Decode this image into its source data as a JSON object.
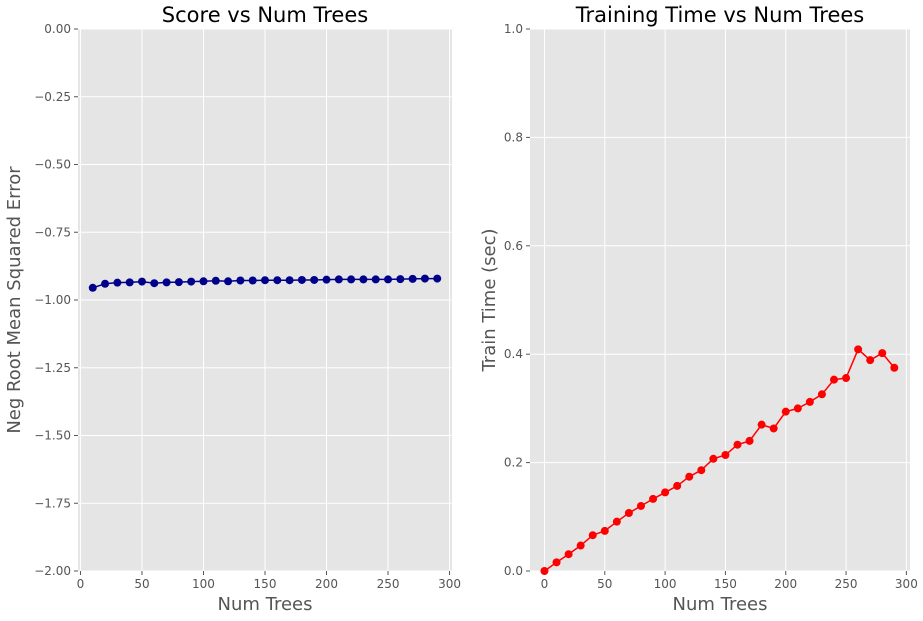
{
  "chart_data": [
    {
      "type": "line",
      "title": "Score vs Num Trees",
      "xlabel": "Num Trees",
      "ylabel": "Neg Root Mean Squared Error",
      "xlim": [
        -2,
        302
      ],
      "ylim": [
        -2.0,
        0.0
      ],
      "xticks": [
        0,
        50,
        100,
        150,
        200,
        250,
        300
      ],
      "yticks": [
        0.0,
        -0.25,
        -0.5,
        -0.75,
        -1.0,
        -1.25,
        -1.5,
        -1.75,
        -2.0
      ],
      "ytick_labels": [
        "0.00",
        "−0.25",
        "−0.50",
        "−0.75",
        "−1.00",
        "−1.25",
        "−1.50",
        "−1.75",
        "−2.00"
      ],
      "grid": true,
      "style": "ggplot",
      "series": [
        {
          "color": "#00008b",
          "marker": "circle",
          "x": [
            10,
            20,
            30,
            40,
            50,
            60,
            70,
            80,
            90,
            100,
            110,
            120,
            130,
            140,
            150,
            160,
            170,
            180,
            190,
            200,
            210,
            220,
            230,
            240,
            250,
            260,
            270,
            280,
            290
          ],
          "y": [
            -0.955,
            -0.94,
            -0.936,
            -0.935,
            -0.932,
            -0.938,
            -0.935,
            -0.934,
            -0.932,
            -0.931,
            -0.929,
            -0.931,
            -0.928,
            -0.928,
            -0.927,
            -0.927,
            -0.927,
            -0.926,
            -0.926,
            -0.925,
            -0.924,
            -0.924,
            -0.924,
            -0.924,
            -0.924,
            -0.923,
            -0.922,
            -0.921,
            -0.921
          ]
        }
      ]
    },
    {
      "type": "line",
      "title": "Training Time vs Num Trees",
      "xlabel": "Num Trees",
      "ylabel": "Train Time (sec)",
      "xlim": [
        -12,
        303
      ],
      "ylim": [
        0.0,
        1.0
      ],
      "xticks": [
        0,
        50,
        100,
        150,
        200,
        250,
        300
      ],
      "yticks": [
        0.0,
        0.2,
        0.4,
        0.6,
        0.8,
        1.0
      ],
      "ytick_labels": [
        "0.0",
        "0.2",
        "0.4",
        "0.6",
        "0.8",
        "1.0"
      ],
      "grid": true,
      "style": "ggplot",
      "series": [
        {
          "color": "#ff0000",
          "marker": "circle",
          "x": [
            0,
            10,
            20,
            30,
            40,
            50,
            60,
            70,
            80,
            90,
            100,
            110,
            120,
            130,
            140,
            150,
            160,
            170,
            180,
            190,
            200,
            210,
            220,
            230,
            240,
            250,
            260,
            270,
            280,
            290
          ],
          "y": [
            0.0,
            0.016,
            0.031,
            0.047,
            0.066,
            0.074,
            0.091,
            0.107,
            0.12,
            0.133,
            0.145,
            0.157,
            0.174,
            0.186,
            0.207,
            0.214,
            0.233,
            0.24,
            0.27,
            0.263,
            0.294,
            0.3,
            0.312,
            0.326,
            0.353,
            0.356,
            0.409,
            0.389,
            0.402,
            0.375
          ]
        }
      ]
    }
  ]
}
